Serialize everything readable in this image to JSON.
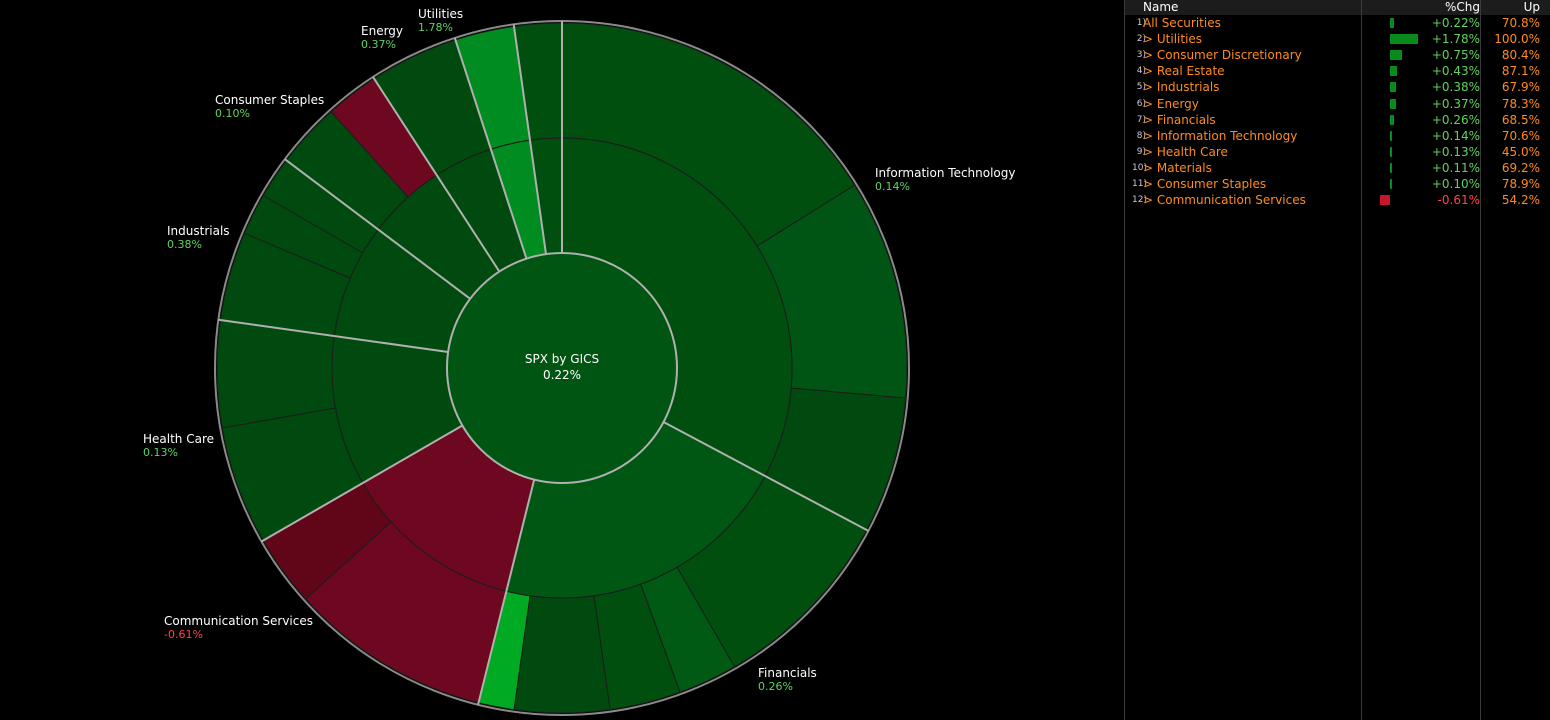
{
  "colors": {
    "positive_text": "#5fd35f",
    "negative_text": "#ff4545",
    "name_text": "#ff8c1a",
    "pos_bar": "#0a8a1a",
    "neg_bar": "#c4182a"
  },
  "chart_data": {
    "type": "sunburst",
    "center": {
      "title": "SPX by GICS",
      "value": "0.22%"
    },
    "labels": [
      {
        "name": "Information Technology",
        "value": "0.14%"
      },
      {
        "name": "Financials",
        "value": "0.26%"
      },
      {
        "name": "Communication Services",
        "value": "-0.61%"
      },
      {
        "name": "Health Care",
        "value": "0.13%"
      },
      {
        "name": "Industrials",
        "value": "0.38%"
      },
      {
        "name": "Consumer Staples",
        "value": "0.10%"
      },
      {
        "name": "Energy",
        "value": "0.37%"
      },
      {
        "name": "Utilities",
        "value": "1.78%"
      }
    ],
    "ring1": [
      {
        "from": 0,
        "to": 118,
        "color": "#004f0f"
      },
      {
        "from": 118,
        "to": 194,
        "color": "#005714"
      },
      {
        "from": 194,
        "to": 240,
        "color": "#6d0820"
      },
      {
        "from": 240,
        "to": 278,
        "color": "#004a0f"
      },
      {
        "from": 278,
        "to": 307,
        "color": "#004a0f"
      },
      {
        "from": 307,
        "to": 327,
        "color": "#004a0f"
      },
      {
        "from": 327,
        "to": 342,
        "color": "#004a0f"
      },
      {
        "from": 342,
        "to": 352,
        "color": "#008c20"
      },
      {
        "from": 352,
        "to": 360,
        "color": "#004f0f"
      }
    ],
    "ring2": [
      {
        "from": 0,
        "to": 58,
        "color": "#004f0f"
      },
      {
        "from": 58,
        "to": 95,
        "color": "#005514"
      },
      {
        "from": 95,
        "to": 118,
        "color": "#004a0f"
      },
      {
        "from": 118,
        "to": 150,
        "color": "#004f0f"
      },
      {
        "from": 150,
        "to": 160,
        "color": "#005a14"
      },
      {
        "from": 160,
        "to": 172,
        "color": "#004f0f"
      },
      {
        "from": 172,
        "to": 188,
        "color": "#004a0f"
      },
      {
        "from": 188,
        "to": 194,
        "color": "#00aa22"
      },
      {
        "from": 194,
        "to": 228,
        "color": "#6d0820"
      },
      {
        "from": 228,
        "to": 240,
        "color": "#600618"
      },
      {
        "from": 240,
        "to": 260,
        "color": "#004a0f"
      },
      {
        "from": 260,
        "to": 278,
        "color": "#004a0f"
      },
      {
        "from": 278,
        "to": 293,
        "color": "#004a0f"
      },
      {
        "from": 293,
        "to": 300,
        "color": "#004a0f"
      },
      {
        "from": 300,
        "to": 307,
        "color": "#004a0f"
      },
      {
        "from": 307,
        "to": 318,
        "color": "#004a0f"
      },
      {
        "from": 318,
        "to": 327,
        "color": "#6d0820"
      },
      {
        "from": 327,
        "to": 342,
        "color": "#004a0f"
      },
      {
        "from": 342,
        "to": 352,
        "color": "#008c20"
      },
      {
        "from": 352,
        "to": 360,
        "color": "#004f0f"
      }
    ]
  },
  "panel": {
    "headers": {
      "name": "Name",
      "chg": "%Chg",
      "up": "Up"
    },
    "rows": [
      {
        "idx": "1)",
        "name": "All Securities",
        "chg": "+0.22%",
        "up": "70.8%",
        "val": 0.22
      },
      {
        "idx": "2)",
        "name": "> Utilities",
        "chg": "+1.78%",
        "up": "100.0%",
        "val": 1.78
      },
      {
        "idx": "3)",
        "name": "> Consumer Discretionary",
        "chg": "+0.75%",
        "up": "80.4%",
        "val": 0.75
      },
      {
        "idx": "4)",
        "name": "> Real Estate",
        "chg": "+0.43%",
        "up": "87.1%",
        "val": 0.43
      },
      {
        "idx": "5)",
        "name": "> Industrials",
        "chg": "+0.38%",
        "up": "67.9%",
        "val": 0.38
      },
      {
        "idx": "6)",
        "name": "> Energy",
        "chg": "+0.37%",
        "up": "78.3%",
        "val": 0.37
      },
      {
        "idx": "7)",
        "name": "> Financials",
        "chg": "+0.26%",
        "up": "68.5%",
        "val": 0.26
      },
      {
        "idx": "8)",
        "name": "> Information Technology",
        "chg": "+0.14%",
        "up": "70.6%",
        "val": 0.14
      },
      {
        "idx": "9)",
        "name": "> Health Care",
        "chg": "+0.13%",
        "up": "45.0%",
        "val": 0.13
      },
      {
        "idx": "10)",
        "name": "> Materials",
        "chg": "+0.11%",
        "up": "69.2%",
        "val": 0.11
      },
      {
        "idx": "11)",
        "name": "> Consumer Staples",
        "chg": "+0.10%",
        "up": "78.9%",
        "val": 0.1
      },
      {
        "idx": "12)",
        "name": "> Communication Services",
        "chg": "-0.61%",
        "up": "54.2%",
        "val": -0.61
      }
    ]
  }
}
